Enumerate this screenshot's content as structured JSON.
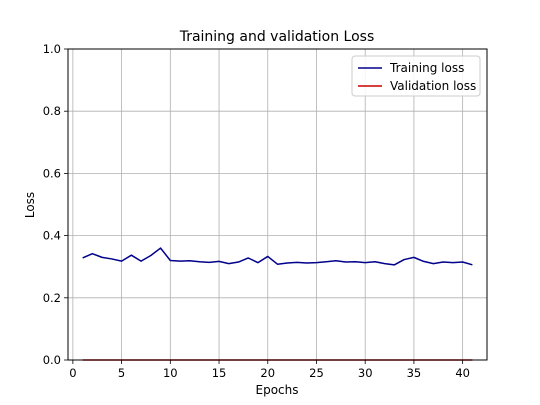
{
  "chart_data": {
    "type": "line",
    "title": "Training and validation Loss",
    "xlabel": "Epochs",
    "ylabel": "Loss",
    "xlim": [
      -0.5,
      42.5
    ],
    "ylim": [
      0.0,
      1.0
    ],
    "xticks": [
      0,
      5,
      10,
      15,
      20,
      25,
      30,
      35,
      40
    ],
    "yticks": [
      0.0,
      0.2,
      0.4,
      0.6,
      0.8,
      1.0
    ],
    "grid": true,
    "legend_position": "top-right",
    "x": [
      1,
      2,
      3,
      4,
      5,
      6,
      7,
      8,
      9,
      10,
      11,
      12,
      13,
      14,
      15,
      16,
      17,
      18,
      19,
      20,
      21,
      22,
      23,
      24,
      25,
      26,
      27,
      28,
      29,
      30,
      31,
      32,
      33,
      34,
      35,
      36,
      37,
      38,
      39,
      40,
      41
    ],
    "series": [
      {
        "name": "Training loss",
        "color": "#00008b",
        "values": [
          0.328,
          0.342,
          0.33,
          0.325,
          0.318,
          0.337,
          0.318,
          0.336,
          0.36,
          0.32,
          0.318,
          0.319,
          0.316,
          0.314,
          0.317,
          0.31,
          0.315,
          0.328,
          0.313,
          0.333,
          0.308,
          0.312,
          0.314,
          0.312,
          0.313,
          0.316,
          0.319,
          0.315,
          0.316,
          0.313,
          0.316,
          0.31,
          0.306,
          0.323,
          0.33,
          0.317,
          0.31,
          0.315,
          0.313,
          0.315,
          0.306
        ]
      },
      {
        "name": "Validation loss",
        "color": "#cc0000",
        "values": [
          0.0,
          0.0,
          0.0,
          0.0,
          0.0,
          0.0,
          0.0,
          0.0,
          0.0,
          0.0,
          0.0,
          0.0,
          0.0,
          0.0,
          0.0,
          0.0,
          0.0,
          0.0,
          0.0,
          0.0,
          0.0,
          0.0,
          0.0,
          0.0,
          0.0,
          0.0,
          0.0,
          0.0,
          0.0,
          0.0,
          0.0,
          0.0,
          0.0,
          0.0,
          0.0,
          0.0,
          0.0,
          0.0,
          0.0,
          0.0,
          0.0
        ]
      }
    ]
  }
}
